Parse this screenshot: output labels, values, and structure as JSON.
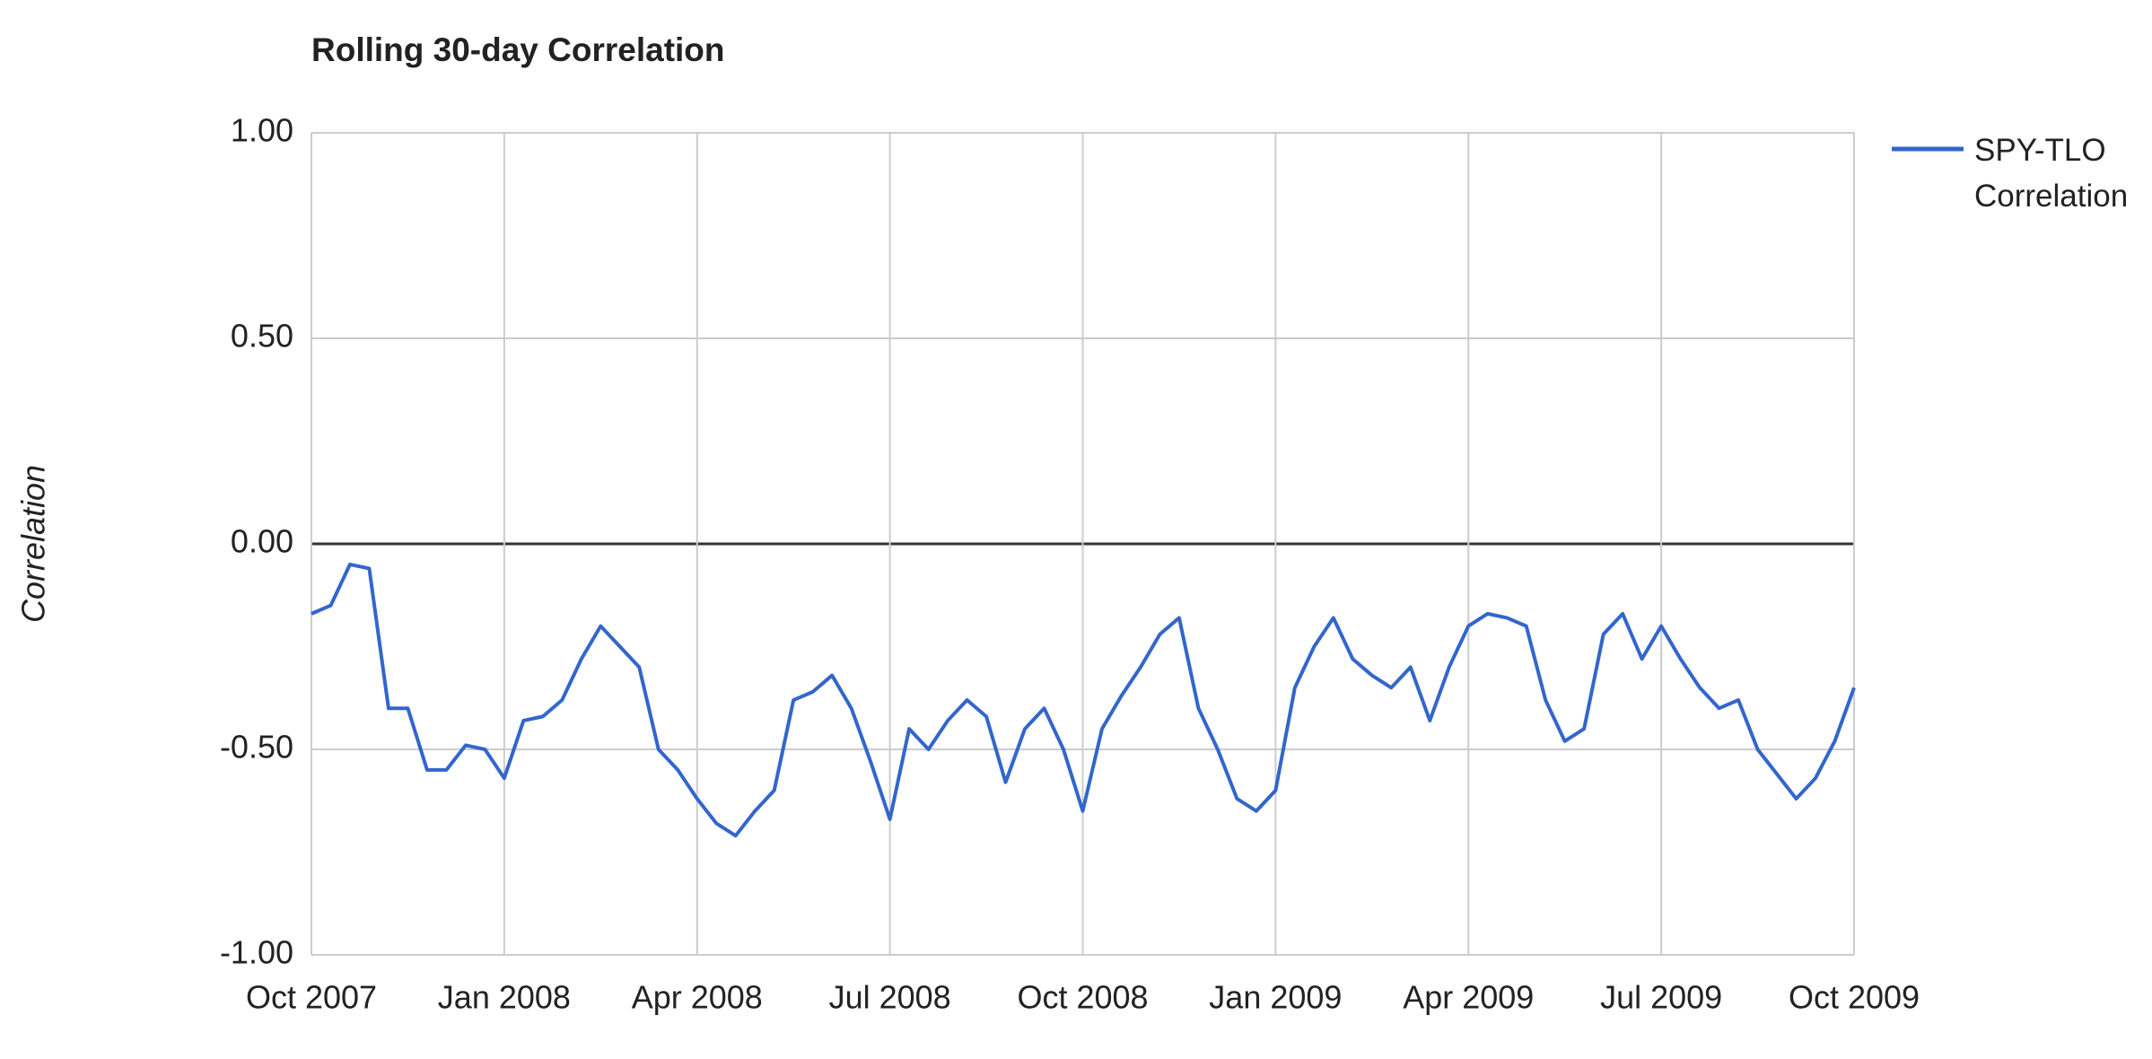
{
  "chart_data": {
    "type": "line",
    "title": "Rolling 30-day Correlation",
    "y_label": "Correlation",
    "categories": [
      "Oct 2007",
      null,
      null,
      null,
      null,
      null,
      null,
      null,
      null,
      null,
      "Jan 2008",
      null,
      null,
      null,
      null,
      null,
      null,
      null,
      null,
      null,
      "Apr 2008",
      null,
      null,
      null,
      null,
      null,
      null,
      null,
      null,
      null,
      "Jul 2008",
      null,
      null,
      null,
      null,
      null,
      null,
      null,
      null,
      null,
      "Oct 2008",
      null,
      null,
      null,
      null,
      null,
      null,
      null,
      null,
      null,
      "Jan 2009",
      null,
      null,
      null,
      null,
      null,
      null,
      null,
      null,
      null,
      "Apr 2009",
      null,
      null,
      null,
      null,
      null,
      null,
      null,
      null,
      null,
      "Jul 2009",
      null,
      null,
      null,
      null,
      null,
      null,
      null,
      null,
      null,
      "Oct 2009"
    ],
    "series": [
      {
        "name": "SPY-TLO Correlation",
        "color": "#3366cc",
        "values": [
          -0.17,
          -0.15,
          -0.05,
          -0.06,
          -0.4,
          -0.4,
          -0.55,
          -0.55,
          -0.49,
          -0.5,
          -0.57,
          -0.43,
          -0.42,
          -0.38,
          -0.28,
          -0.2,
          -0.25,
          -0.3,
          -0.5,
          -0.55,
          -0.62,
          -0.68,
          -0.71,
          -0.65,
          -0.6,
          -0.38,
          -0.36,
          -0.32,
          -0.4,
          -0.53,
          -0.67,
          -0.45,
          -0.5,
          -0.43,
          -0.38,
          -0.42,
          -0.58,
          -0.45,
          -0.4,
          -0.5,
          -0.65,
          -0.45,
          -0.37,
          -0.3,
          -0.22,
          -0.18,
          -0.4,
          -0.5,
          -0.62,
          -0.65,
          -0.6,
          -0.35,
          -0.25,
          -0.18,
          -0.28,
          -0.32,
          -0.35,
          -0.3,
          -0.43,
          -0.3,
          -0.2,
          -0.17,
          -0.18,
          -0.2,
          -0.38,
          -0.48,
          -0.45,
          -0.22,
          -0.17,
          -0.28,
          -0.2,
          -0.28,
          -0.35,
          -0.4,
          -0.38,
          -0.5,
          -0.56,
          -0.62,
          -0.57,
          -0.48,
          -0.35
        ]
      }
    ],
    "ylim": [
      -1,
      1
    ],
    "yticks": [
      {
        "value": -1,
        "label": "-1.00"
      },
      {
        "value": -0.5,
        "label": "-0.50"
      },
      {
        "value": 0,
        "label": "0.00"
      },
      {
        "value": 0.5,
        "label": "0.50"
      },
      {
        "value": 1,
        "label": "1.00"
      }
    ],
    "grid": true,
    "legend": "right"
  }
}
